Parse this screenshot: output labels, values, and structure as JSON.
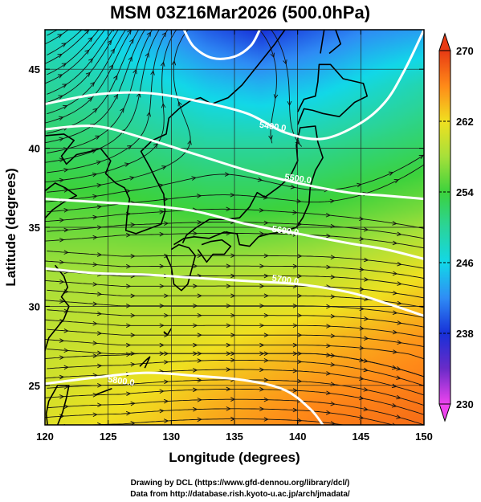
{
  "title": "MSM 03Z16Mar2026 (500.0hPa)",
  "xlabel": "Longitude (degrees)",
  "ylabel": "Latitude  (degrees)",
  "credits": [
    "Drawing by DCL (https://www.gfd-dennou.org/library/dcl/)",
    "Data from http://database.rish.kyoto-u.ac.jp/arch/jmadata/"
  ],
  "map": {
    "lon_range": [
      120,
      150
    ],
    "lat_range": [
      22.5,
      47.5
    ],
    "lon_ticks": [
      120,
      125,
      130,
      135,
      140,
      145,
      150
    ],
    "lat_ticks": [
      25,
      30,
      35,
      40,
      45
    ],
    "grid": true
  },
  "chart_data": {
    "type": "heatmap",
    "variable": "temperature",
    "colorbar": {
      "range": [
        230,
        270
      ],
      "ticks": [
        230,
        238,
        246,
        254,
        262,
        270
      ],
      "stops": [
        {
          "value": 230,
          "color": "#ee44ee"
        },
        {
          "value": 234,
          "color": "#6a2bc8"
        },
        {
          "value": 238,
          "color": "#1730d8"
        },
        {
          "value": 242,
          "color": "#2f8cf5"
        },
        {
          "value": 246,
          "color": "#12d8e8"
        },
        {
          "value": 250,
          "color": "#2ad49a"
        },
        {
          "value": 254,
          "color": "#3cd23c"
        },
        {
          "value": 258,
          "color": "#a6e03a"
        },
        {
          "value": 262,
          "color": "#f0e020"
        },
        {
          "value": 266,
          "color": "#ff8a18"
        },
        {
          "value": 270,
          "color": "#e83a14"
        }
      ]
    },
    "temperature_field": [
      {
        "lat": 47.5,
        "values": [
          248,
          246,
          243,
          240,
          238,
          240,
          242,
          243
        ]
      },
      {
        "lat": 44,
        "values": [
          250,
          249,
          247,
          245,
          244,
          245,
          247,
          249
        ]
      },
      {
        "lat": 40,
        "values": [
          252.5,
          252,
          251,
          250,
          250,
          250.5,
          251.5,
          252.5
        ]
      },
      {
        "lat": 36,
        "values": [
          255,
          255,
          254.5,
          254,
          254,
          254.5,
          255.5,
          256.5
        ]
      },
      {
        "lat": 32,
        "values": [
          258,
          258,
          258,
          258.5,
          259,
          259.5,
          260.5,
          262
        ]
      },
      {
        "lat": 28,
        "values": [
          259.5,
          260,
          260.5,
          261.5,
          262.5,
          263.5,
          264.5,
          265.5
        ]
      },
      {
        "lat": 24,
        "values": [
          260.5,
          261.5,
          262.5,
          264,
          265,
          266,
          266.5,
          267
        ]
      },
      {
        "lat": 22.5,
        "values": [
          261,
          262,
          263,
          264.5,
          265.5,
          266.5,
          267,
          267.5
        ]
      }
    ],
    "field_lons": [
      120,
      124.3,
      128.6,
      132.9,
      137.1,
      141.4,
      145.7,
      150
    ],
    "contours": [
      {
        "label": "5400.0",
        "label_lon": 138,
        "label_lat": 41.2,
        "points": [
          [
            120,
            42.8
          ],
          [
            124,
            43.4
          ],
          [
            128,
            43.5
          ],
          [
            132,
            43
          ],
          [
            136,
            42.2
          ],
          [
            139,
            41
          ],
          [
            142,
            40.6
          ],
          [
            145,
            41.6
          ],
          [
            147,
            43
          ],
          [
            148.5,
            45
          ],
          [
            150,
            47.5
          ]
        ]
      },
      {
        "label": "5500.0",
        "label_lon": 140,
        "label_lat": 37.9,
        "points": [
          [
            120,
            41.2
          ],
          [
            124,
            41.4
          ],
          [
            128,
            40.6
          ],
          [
            132,
            39.6
          ],
          [
            136,
            38.6
          ],
          [
            140,
            37.8
          ],
          [
            144,
            37.2
          ],
          [
            147,
            37
          ],
          [
            150,
            36.8
          ]
        ]
      },
      {
        "label": "5600.0",
        "label_lon": 139,
        "label_lat": 34.6,
        "points": [
          [
            120,
            36.8
          ],
          [
            124,
            36.6
          ],
          [
            128,
            36.4
          ],
          [
            132,
            36
          ],
          [
            136,
            35.2
          ],
          [
            140,
            34.6
          ],
          [
            144,
            34
          ],
          [
            147,
            33.6
          ],
          [
            150,
            33
          ]
        ]
      },
      {
        "label": "5700.0",
        "label_lon": 139,
        "label_lat": 31.5,
        "points": [
          [
            120,
            32.4
          ],
          [
            124,
            32.1
          ],
          [
            128,
            32
          ],
          [
            132,
            31.8
          ],
          [
            136,
            31.6
          ],
          [
            140,
            31.4
          ],
          [
            144,
            30.9
          ],
          [
            147,
            30.2
          ],
          [
            150,
            29.4
          ]
        ]
      },
      {
        "label": "5800.0",
        "label_lon": 126,
        "label_lat": 25.1,
        "points": [
          [
            120,
            25.1
          ],
          [
            124,
            25.5
          ],
          [
            128,
            25.8
          ],
          [
            132,
            25.6
          ],
          [
            136,
            25.3
          ],
          [
            139,
            24.7
          ],
          [
            141,
            23.5
          ],
          [
            142,
            22.5
          ]
        ]
      },
      {
        "label": "",
        "label_lon": 0,
        "label_lat": 0,
        "points": [
          [
            131,
            47.5
          ],
          [
            131.8,
            46.4
          ],
          [
            133.3,
            45.7
          ],
          [
            135,
            45.8
          ],
          [
            136.3,
            46.5
          ],
          [
            137,
            47.5
          ]
        ]
      }
    ]
  }
}
